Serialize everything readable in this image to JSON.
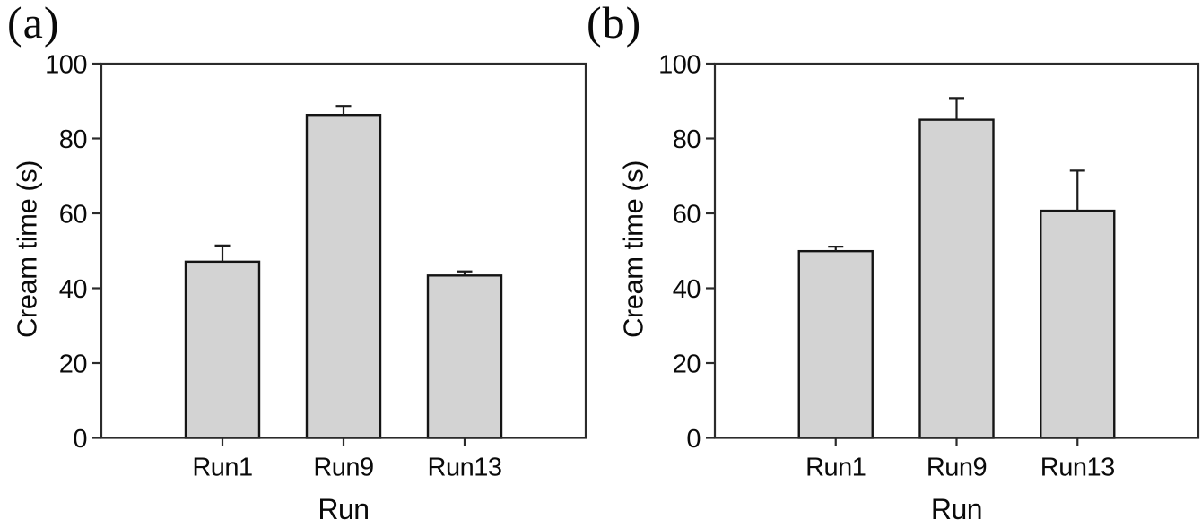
{
  "figure": {
    "background": "#ffffff",
    "text_color": "#0a0a0a"
  },
  "chart_data": [
    {
      "type": "bar",
      "panel_label": "(a)",
      "title": "",
      "xlabel": "Run",
      "ylabel": "Cream time (s)",
      "categories": [
        "Run1",
        "Run9",
        "Run13"
      ],
      "values": [
        47.1,
        86.3,
        43.4
      ],
      "errors_upper": [
        4.3,
        2.4,
        1.1
      ],
      "ylim": [
        0,
        100
      ],
      "yticks": [
        0,
        20,
        40,
        60,
        80,
        100
      ],
      "grid": false,
      "frame": "full-box",
      "error_direction": "upper-only",
      "bar_color": "#d3d3d3",
      "bar_edge_color": "#141414",
      "axis_color": "#2b2b2b"
    },
    {
      "type": "bar",
      "panel_label": "(b)",
      "title": "",
      "xlabel": "Run",
      "ylabel": "Cream time (s)",
      "categories": [
        "Run1",
        "Run9",
        "Run13"
      ],
      "values": [
        49.9,
        85.0,
        60.7
      ],
      "errors_upper": [
        1.2,
        5.8,
        10.7
      ],
      "ylim": [
        0,
        100
      ],
      "yticks": [
        0,
        20,
        40,
        60,
        80,
        100
      ],
      "grid": false,
      "frame": "full-box",
      "error_direction": "upper-only",
      "bar_color": "#d3d3d3",
      "bar_edge_color": "#141414",
      "axis_color": "#2b2b2b"
    }
  ]
}
